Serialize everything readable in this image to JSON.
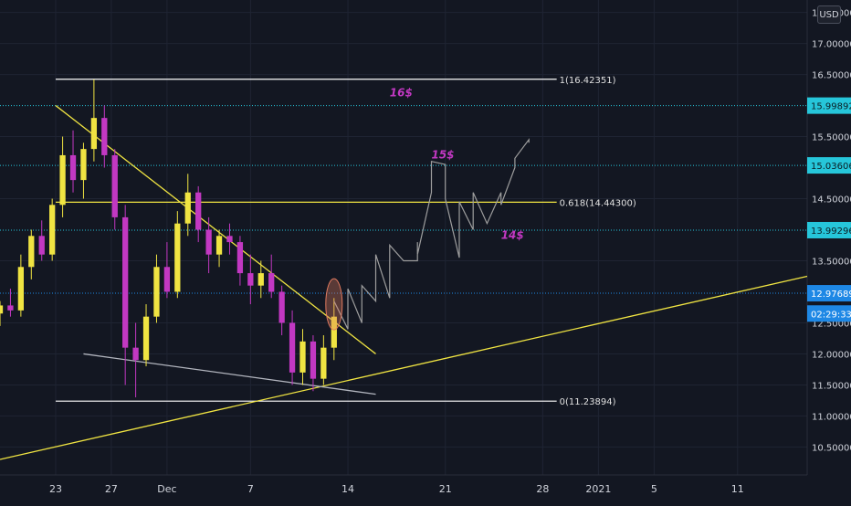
{
  "currency_button": "USD",
  "chart_data": {
    "type": "candlestick",
    "y_scale": "linear",
    "ylim": [
      10.05,
      17.7
    ],
    "grid": true,
    "xlim": [
      "2020-11-19",
      "2021-01-16"
    ],
    "x_ticks": [
      {
        "date": "2020-11-23",
        "label": "23"
      },
      {
        "date": "2020-11-27",
        "label": "27"
      },
      {
        "date": "2020-12-01",
        "label": "Dec"
      },
      {
        "date": "2020-12-07",
        "label": "7"
      },
      {
        "date": "2020-12-14",
        "label": "14"
      },
      {
        "date": "2020-12-21",
        "label": "21"
      },
      {
        "date": "2020-12-28",
        "label": "28"
      },
      {
        "date": "2021-01-01",
        "label": "2021"
      },
      {
        "date": "2021-01-05",
        "label": "5"
      },
      {
        "date": "2021-01-11",
        "label": "11"
      }
    ],
    "y_ticks": [
      {
        "value": 10.5,
        "label": "10.50000"
      },
      {
        "value": 11.0,
        "label": "11.00000"
      },
      {
        "value": 11.5,
        "label": "11.50000"
      },
      {
        "value": 12.0,
        "label": "12.00000"
      },
      {
        "value": 12.5,
        "label": "12.50000"
      },
      {
        "value": 13.5,
        "label": "13.50000"
      },
      {
        "value": 14.5,
        "label": "14.50000"
      },
      {
        "value": 15.5,
        "label": "15.50000"
      },
      {
        "value": 16.5,
        "label": "16.50000"
      },
      {
        "value": 17.0,
        "label": "17.00000"
      },
      {
        "value": 17.5,
        "label": "17.50000"
      }
    ],
    "price_badges": [
      {
        "value": 15.99892,
        "label": "15.99892",
        "color": "#26c6da"
      },
      {
        "value": 15.03606,
        "label": "15.03606",
        "color": "#26c6da"
      },
      {
        "value": 13.99296,
        "label": "13.99296",
        "color": "#26c6da"
      },
      {
        "value": 12.97689,
        "label": "12.97689",
        "color": "#1e88e5"
      }
    ],
    "countdown_badge": {
      "value": 12.65,
      "label": "02:29:33",
      "color": "#1e88e5"
    },
    "horizontal_levels": [
      {
        "value": 16.42351,
        "label": "1(16.42351)",
        "color": "#ffffff",
        "x_start": "2020-11-23",
        "x_end": "2020-12-29",
        "style": "solid"
      },
      {
        "value": 14.443,
        "label": "0.618(14.44300)",
        "color": "#f0e442",
        "x_start": "2020-11-23",
        "x_end": "2020-12-29",
        "style": "solid"
      },
      {
        "value": 11.23894,
        "label": "0(11.23894)",
        "color": "#ffffff",
        "x_start": "2020-11-23",
        "x_end": "2020-12-29",
        "style": "solid"
      },
      {
        "value": 15.99892,
        "label": "",
        "color": "#26c6da",
        "x_start": "2020-11-19",
        "x_end": "2021-01-16",
        "style": "dotted"
      },
      {
        "value": 15.03606,
        "label": "",
        "color": "#26c6da",
        "x_start": "2020-11-19",
        "x_end": "2021-01-16",
        "style": "dotted"
      },
      {
        "value": 13.99296,
        "label": "",
        "color": "#26c6da",
        "x_start": "2020-11-19",
        "x_end": "2021-01-16",
        "style": "dotted"
      },
      {
        "value": 12.97689,
        "label": "",
        "color": "#1e88e5",
        "x_start": "2020-11-19",
        "x_end": "2021-01-16",
        "style": "dotted"
      }
    ],
    "trendlines": [
      {
        "name": "descending-resistance",
        "color": "#f0e442",
        "points": [
          [
            "2020-11-23",
            16.0
          ],
          [
            "2020-12-16",
            12.0
          ]
        ]
      },
      {
        "name": "ascending-support",
        "color": "#f0e442",
        "points": [
          [
            "2020-11-19",
            10.3
          ],
          [
            "2021-01-16",
            13.25
          ]
        ]
      },
      {
        "name": "lower-wedge",
        "color": "#b2b5be",
        "points": [
          [
            "2020-11-25",
            12.0
          ],
          [
            "2020-12-16",
            11.35
          ]
        ]
      }
    ],
    "annotations": [
      {
        "text": "16$",
        "date": "2020-12-17",
        "value": 16.15,
        "color": "#c238c2"
      },
      {
        "text": "15$",
        "date": "2020-12-20",
        "value": 15.15,
        "color": "#c238c2"
      },
      {
        "text": "14$",
        "date": "2020-12-25",
        "value": 13.85,
        "color": "#c238c2"
      }
    ],
    "highlight_ellipse": {
      "date": "2020-12-13",
      "value": 12.8,
      "color": "#e07a5f"
    },
    "projection_path": {
      "color": "#9e9e9e",
      "points": [
        [
          "2020-12-13",
          12.85
        ],
        [
          "2020-12-14",
          12.4
        ],
        [
          "2020-12-14",
          13.05
        ],
        [
          "2020-12-15",
          12.5
        ],
        [
          "2020-12-15",
          13.1
        ],
        [
          "2020-12-16",
          12.85
        ],
        [
          "2020-12-16",
          13.6
        ],
        [
          "2020-12-17",
          12.9
        ],
        [
          "2020-12-17",
          13.75
        ],
        [
          "2020-12-18",
          13.5
        ],
        [
          "2020-12-19",
          13.5
        ],
        [
          "2020-12-19",
          13.8
        ],
        [
          "2020-12-19",
          13.6
        ],
        [
          "2020-12-20",
          14.6
        ],
        [
          "2020-12-20",
          15.1
        ],
        [
          "2020-12-21",
          15.05
        ],
        [
          "2020-12-21",
          14.5
        ],
        [
          "2020-12-22",
          13.55
        ],
        [
          "2020-12-22",
          14.45
        ],
        [
          "2020-12-23",
          14.0
        ],
        [
          "2020-12-23",
          14.6
        ],
        [
          "2020-12-24",
          14.1
        ],
        [
          "2020-12-25",
          14.6
        ],
        [
          "2020-12-25",
          14.4
        ],
        [
          "2020-12-26",
          15.0
        ],
        [
          "2020-12-26",
          15.15
        ],
        [
          "2020-12-27",
          15.45
        ],
        [
          "2020-12-27",
          15.4
        ]
      ]
    },
    "candles": [
      {
        "t": 0,
        "o": 12.65,
        "h": 12.85,
        "l": 12.45,
        "c": 12.78
      },
      {
        "t": 1,
        "o": 12.78,
        "h": 13.05,
        "l": 12.6,
        "c": 12.7
      },
      {
        "t": 2,
        "o": 12.7,
        "h": 13.6,
        "l": 12.6,
        "c": 13.4
      },
      {
        "t": 3,
        "o": 13.4,
        "h": 14.0,
        "l": 13.2,
        "c": 13.9
      },
      {
        "t": 4,
        "o": 13.9,
        "h": 14.15,
        "l": 13.5,
        "c": 13.6
      },
      {
        "t": 5,
        "o": 13.6,
        "h": 14.5,
        "l": 13.5,
        "c": 14.4
      },
      {
        "t": 6,
        "o": 14.4,
        "h": 15.5,
        "l": 14.2,
        "c": 15.2
      },
      {
        "t": 7,
        "o": 15.2,
        "h": 15.6,
        "l": 14.6,
        "c": 14.8
      },
      {
        "t": 8,
        "o": 14.8,
        "h": 15.4,
        "l": 14.5,
        "c": 15.3
      },
      {
        "t": 9,
        "o": 15.3,
        "h": 16.42,
        "l": 15.1,
        "c": 15.8
      },
      {
        "t": 10,
        "o": 15.8,
        "h": 16.0,
        "l": 15.0,
        "c": 15.2
      },
      {
        "t": 11,
        "o": 15.2,
        "h": 15.3,
        "l": 14.0,
        "c": 14.2
      },
      {
        "t": 12,
        "o": 14.2,
        "h": 14.4,
        "l": 11.5,
        "c": 12.1
      },
      {
        "t": 13,
        "o": 12.1,
        "h": 12.5,
        "l": 11.3,
        "c": 11.9
      },
      {
        "t": 14,
        "o": 11.9,
        "h": 12.8,
        "l": 11.8,
        "c": 12.6
      },
      {
        "t": 15,
        "o": 12.6,
        "h": 13.6,
        "l": 12.5,
        "c": 13.4
      },
      {
        "t": 16,
        "o": 13.4,
        "h": 13.8,
        "l": 12.9,
        "c": 13.0
      },
      {
        "t": 17,
        "o": 13.0,
        "h": 14.3,
        "l": 12.9,
        "c": 14.1
      },
      {
        "t": 18,
        "o": 14.1,
        "h": 14.9,
        "l": 13.9,
        "c": 14.6
      },
      {
        "t": 19,
        "o": 14.6,
        "h": 14.7,
        "l": 13.8,
        "c": 14.0
      },
      {
        "t": 20,
        "o": 14.0,
        "h": 14.2,
        "l": 13.3,
        "c": 13.6
      },
      {
        "t": 21,
        "o": 13.6,
        "h": 14.0,
        "l": 13.4,
        "c": 13.9
      },
      {
        "t": 22,
        "o": 13.9,
        "h": 14.1,
        "l": 13.6,
        "c": 13.8
      },
      {
        "t": 23,
        "o": 13.8,
        "h": 13.9,
        "l": 13.1,
        "c": 13.3
      },
      {
        "t": 24,
        "o": 13.3,
        "h": 13.6,
        "l": 12.8,
        "c": 13.1
      },
      {
        "t": 25,
        "o": 13.1,
        "h": 13.5,
        "l": 12.9,
        "c": 13.3
      },
      {
        "t": 26,
        "o": 13.3,
        "h": 13.6,
        "l": 12.9,
        "c": 13.0
      },
      {
        "t": 27,
        "o": 13.0,
        "h": 13.1,
        "l": 12.3,
        "c": 12.5
      },
      {
        "t": 28,
        "o": 12.5,
        "h": 12.7,
        "l": 11.5,
        "c": 11.7
      },
      {
        "t": 29,
        "o": 11.7,
        "h": 12.4,
        "l": 11.5,
        "c": 12.2
      },
      {
        "t": 30,
        "o": 12.2,
        "h": 12.3,
        "l": 11.4,
        "c": 11.6
      },
      {
        "t": 31,
        "o": 11.6,
        "h": 12.3,
        "l": 11.5,
        "c": 12.1
      },
      {
        "t": 32,
        "o": 12.1,
        "h": 12.9,
        "l": 11.9,
        "c": 12.6
      }
    ]
  }
}
